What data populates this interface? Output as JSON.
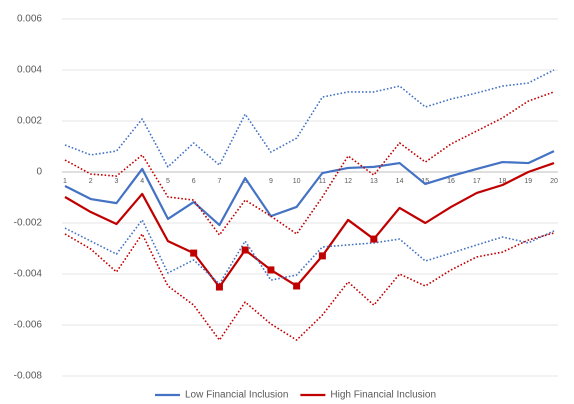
{
  "chart_data": {
    "type": "line",
    "categories": [
      "1",
      "2",
      "3",
      "4",
      "5",
      "6",
      "7",
      "8",
      "9",
      "10",
      "11",
      "12",
      "13",
      "14",
      "15",
      "16",
      "17",
      "18",
      "19",
      "20"
    ],
    "ylim": [
      -0.008,
      0.006
    ],
    "yticks": [
      0.006,
      0.004,
      0.002,
      0,
      -0.002,
      -0.004,
      -0.006,
      -0.008
    ],
    "grid": true,
    "legend": "bottom",
    "series": [
      {
        "name": "Low Financial Inclusion",
        "color": "#4472c4",
        "style": "solid",
        "values": [
          -0.00055,
          -0.00106,
          -0.00122,
          0.00012,
          -0.00184,
          -0.00118,
          -0.00208,
          -0.00024,
          -0.00173,
          -0.00137,
          -4e-05,
          0.00016,
          0.0002,
          0.00035,
          -0.00047,
          -0.00016,
          0.00012,
          0.00039,
          0.00035,
          0.00082
        ]
      },
      {
        "name": "High Financial Inclusion",
        "color": "#c00000",
        "style": "solid",
        "values": [
          -0.00098,
          -0.00157,
          -0.00204,
          -0.00086,
          -0.00271,
          -0.00318,
          -0.00451,
          -0.00306,
          -0.00384,
          -0.00447,
          -0.00329,
          -0.00188,
          -0.00263,
          -0.00141,
          -0.002,
          -0.00137,
          -0.00082,
          -0.00051,
          0,
          0.00035
        ]
      },
      {
        "color": "#4472c4",
        "style": "dotted",
        "values": [
          0.00106,
          0.00067,
          0.00082,
          0.00208,
          0.0002,
          0.00114,
          0.00027,
          0.00227,
          0.00078,
          0.00133,
          0.00294,
          0.00314,
          0.00314,
          0.00337,
          0.00255,
          0.00286,
          0.0031,
          0.00337,
          0.00349,
          0.004
        ]
      },
      {
        "color": "#4472c4",
        "style": "dotted",
        "values": [
          -0.0022,
          -0.00271,
          -0.00322,
          -0.00188,
          -0.00396,
          -0.00345,
          -0.00439,
          -0.00271,
          -0.00424,
          -0.00404,
          -0.00294,
          -0.00286,
          -0.00278,
          -0.00263,
          -0.00349,
          -0.00318,
          -0.00286,
          -0.00255,
          -0.00278,
          -0.00231
        ]
      },
      {
        "color": "#c00000",
        "style": "dotted",
        "values": [
          0.00047,
          -8e-05,
          -0.00016,
          0.00067,
          -0.00098,
          -0.0011,
          -0.00247,
          -0.0011,
          -0.00173,
          -0.00243,
          -0.00098,
          0.00063,
          -0.00012,
          0.00114,
          0.00039,
          0.0011,
          0.00161,
          0.00212,
          0.00278,
          0.00314
        ]
      },
      {
        "color": "#c00000",
        "style": "dotted",
        "values": [
          -0.00243,
          -0.00302,
          -0.00392,
          -0.00243,
          -0.00447,
          -0.00522,
          -0.00659,
          -0.0051,
          -0.00596,
          -0.00659,
          -0.00561,
          -0.00431,
          -0.00522,
          -0.004,
          -0.00447,
          -0.00384,
          -0.00333,
          -0.00314,
          -0.00267,
          -0.00239
        ]
      },
      {
        "color": "#c00000",
        "style": "marker",
        "values": [
          null,
          null,
          null,
          null,
          null,
          -0.00318,
          -0.00451,
          -0.00306,
          -0.00384,
          -0.00447,
          -0.00329,
          null,
          -0.00263,
          null,
          null,
          null,
          null,
          null,
          null,
          null
        ]
      }
    ]
  }
}
